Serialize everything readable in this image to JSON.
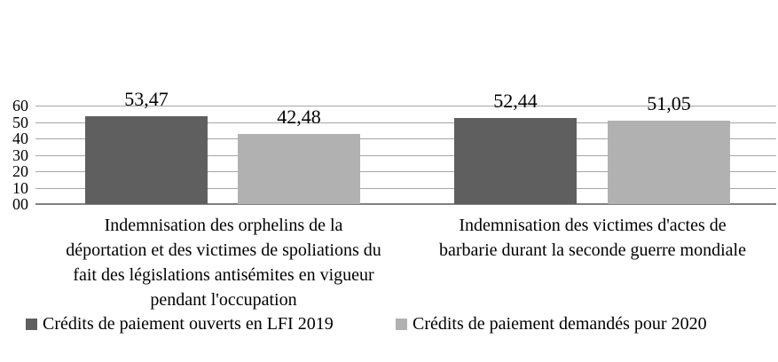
{
  "chart_data": {
    "type": "bar",
    "categories": [
      "Indemnisation des orphelins de la\ndéportation et des victimes de spoliations du\nfait des législations antisémites en vigueur\npendant l'occupation",
      "Indemnisation des victimes d'actes de\nbarbarie durant la seconde guerre mondiale"
    ],
    "series": [
      {
        "name": "Crédits de paiement ouverts en LFI 2019",
        "values": [
          53.47,
          52.44
        ],
        "value_labels": [
          "53,47",
          "52,44"
        ],
        "color": "#5f5f5f"
      },
      {
        "name": "Crédits de paiement demandés pour 2020",
        "values": [
          42.48,
          51.05
        ],
        "value_labels": [
          "42,48",
          "51,05"
        ],
        "color": "#b1b1b1"
      }
    ],
    "y_axis": {
      "min": 0,
      "max": 60,
      "tick_step": 10,
      "tick_labels_top_to_bottom": [
        "60",
        "50",
        "40",
        "30",
        "20",
        "10",
        "00"
      ]
    },
    "grid": true,
    "legend_position": "bottom",
    "colors": {
      "gridline": "#a6a6a6",
      "axis_line": "#808080",
      "text": "#000000",
      "background": "#ffffff"
    }
  }
}
